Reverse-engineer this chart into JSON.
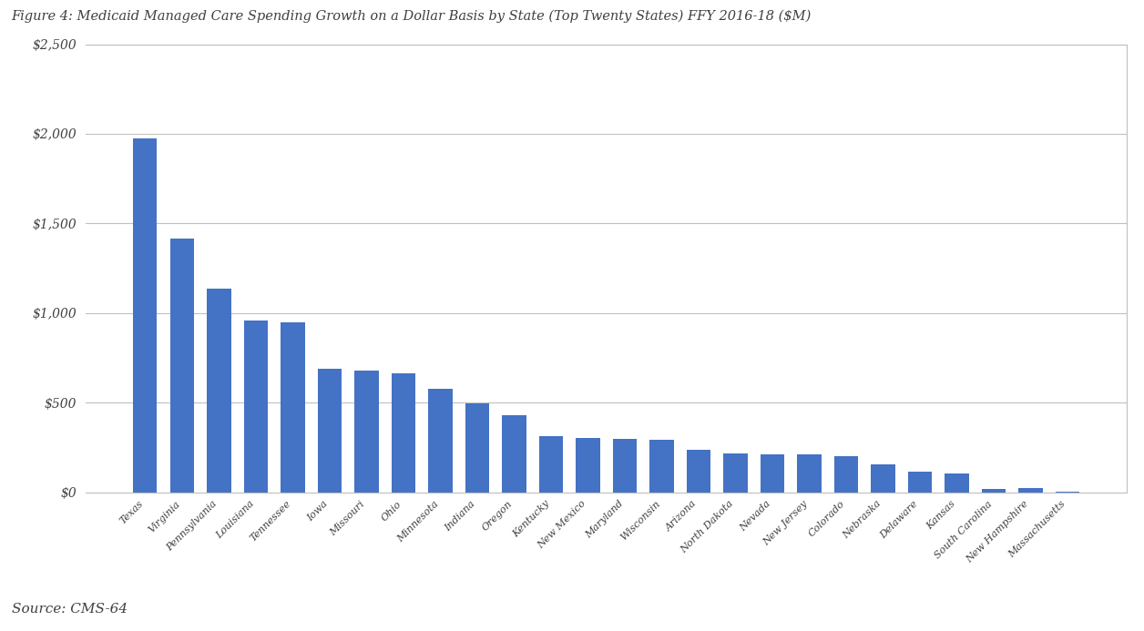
{
  "title": "Figure 4: Medicaid Managed Care Spending Growth on a Dollar Basis by State (Top Twenty States) FFY 2016-18 ($M)",
  "source": "Source: CMS-64",
  "categories": [
    "Texas",
    "Virginia",
    "Pennsylvania",
    "Louisiana",
    "Tennessee",
    "Iowa",
    "Missouri",
    "Ohio",
    "Minnesota",
    "Indiana",
    "Oregon",
    "Kentucky",
    "New Mexico",
    "Maryland",
    "Wisconsin",
    "Arizona",
    "North Dakota",
    "Nevada",
    "New Jersey",
    "Colorado",
    "Nebraska",
    "Delaware",
    "Kansas",
    "South Carolina",
    "New Hampshire",
    "Massachusetts"
  ],
  "values": [
    1975,
    1415,
    1135,
    960,
    950,
    690,
    680,
    665,
    575,
    495,
    430,
    315,
    300,
    295,
    290,
    235,
    215,
    210,
    210,
    200,
    155,
    115,
    105,
    20,
    25,
    5
  ],
  "bar_color": "#4472c4",
  "ylim": [
    0,
    2500
  ],
  "yticks": [
    0,
    500,
    1000,
    1500,
    2000,
    2500
  ],
  "background_color": "#ffffff",
  "plot_bg_color": "#ffffff",
  "grid_color": "#c0c0c0",
  "title_color": "#404040",
  "source_color": "#404040",
  "title_fontsize": 10.5,
  "source_fontsize": 11,
  "ytick_fontsize": 10,
  "xtick_fontsize": 8,
  "bar_width": 0.65,
  "border_color": "#c0c0c0"
}
